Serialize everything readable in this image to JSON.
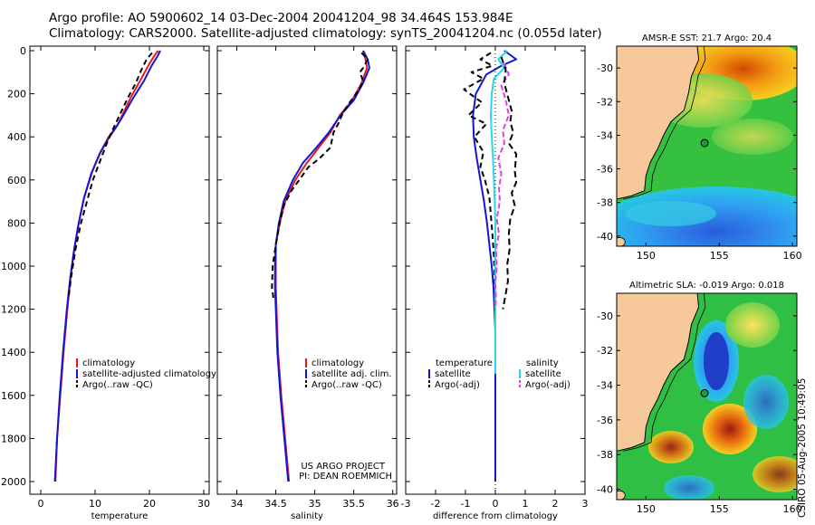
{
  "header": {
    "line1": "Argo profile: AO 5900602_14 03-Dec-2004 20041204_98 34.464S 153.984E",
    "line2": "Climatology: CARS2000. Satellite-adjusted climatology: synTS_20041204.nc (0.055d later)"
  },
  "stamp": "CSIRO 05-Aug-2005 10:49:05",
  "colors": {
    "climatology": "#e41a1c",
    "satellite": "#1515d0",
    "argo": "#000000",
    "satellite_salinity": "#28d8e8",
    "argo_salinity": "#e040e0",
    "land": "#f6c89a"
  },
  "chart_data": [
    {
      "type": "line",
      "name": "temperature-profile",
      "xlabel": "temperature",
      "xlim": [
        -2,
        31
      ],
      "ylim": [
        0,
        2050
      ],
      "y_reversed": true,
      "xticks": [
        0,
        10,
        20,
        30
      ],
      "yticks": [
        0,
        200,
        400,
        600,
        800,
        1000,
        1200,
        1400,
        1600,
        1800,
        2000
      ],
      "ytick_labels": [
        "0",
        "200",
        "400",
        "600",
        "800",
        "1000",
        "1200",
        "1400",
        "1600",
        "1800",
        "2000"
      ],
      "series": [
        {
          "name": "climatology",
          "color_key": "climatology",
          "dash": "",
          "points": [
            [
              21.6,
              0
            ],
            [
              21,
              20
            ],
            [
              20,
              60
            ],
            [
              18.5,
              130
            ],
            [
              16.5,
              220
            ],
            [
              15,
              300
            ],
            [
              14,
              350
            ],
            [
              12.5,
              400
            ],
            [
              11,
              470
            ],
            [
              9.5,
              560
            ],
            [
              8,
              680
            ],
            [
              7,
              800
            ],
            [
              6.2,
              920
            ],
            [
              5.5,
              1050
            ],
            [
              4.9,
              1200
            ],
            [
              4.2,
              1400
            ],
            [
              3.6,
              1600
            ],
            [
              3,
              1800
            ],
            [
              2.7,
              2000
            ]
          ]
        },
        {
          "name": "satellite-adjusted climatology",
          "color_key": "satellite",
          "dash": "",
          "points": [
            [
              22,
              0
            ],
            [
              21.5,
              25
            ],
            [
              20.4,
              70
            ],
            [
              19,
              140
            ],
            [
              17,
              220
            ],
            [
              15.2,
              300
            ],
            [
              14,
              350
            ],
            [
              12.4,
              410
            ],
            [
              10.8,
              480
            ],
            [
              9.3,
              570
            ],
            [
              7.9,
              690
            ],
            [
              6.9,
              810
            ],
            [
              6.1,
              930
            ],
            [
              5.4,
              1060
            ],
            [
              4.8,
              1200
            ],
            [
              4.1,
              1400
            ],
            [
              3.5,
              1600
            ],
            [
              3,
              1800
            ],
            [
              2.6,
              2000
            ]
          ]
        },
        {
          "name": "Argo(..raw -QC)",
          "color_key": "argo",
          "dash": "6 4",
          "points": [
            [
              20.5,
              10
            ],
            [
              19.5,
              40
            ],
            [
              18.5,
              90
            ],
            [
              17.5,
              150
            ],
            [
              16,
              220
            ],
            [
              14.5,
              300
            ],
            [
              13,
              380
            ],
            [
              12,
              440
            ],
            [
              10.8,
              520
            ],
            [
              9.6,
              600
            ],
            [
              8.5,
              700
            ],
            [
              7.4,
              800
            ],
            [
              6.4,
              920
            ],
            [
              5.6,
              1050
            ],
            [
              5.1,
              1150
            ]
          ]
        }
      ],
      "legend": {
        "position": "bottom-right",
        "entries": [
          "climatology",
          "satellite-adjusted climatology",
          "Argo(..raw -QC)"
        ]
      }
    },
    {
      "type": "line",
      "name": "salinity-profile",
      "xlabel": "salinity",
      "xlim": [
        33.75,
        36.05
      ],
      "ylim": [
        0,
        2050
      ],
      "y_reversed": true,
      "xticks": [
        34,
        34.5,
        35,
        35.5,
        36
      ],
      "annotations": [
        "US ARGO PROJECT",
        "PI: DEAN ROEMMICH"
      ],
      "series": [
        {
          "name": "climatology",
          "color_key": "climatology",
          "dash": "",
          "points": [
            [
              35.62,
              0
            ],
            [
              35.65,
              40
            ],
            [
              35.67,
              80
            ],
            [
              35.6,
              150
            ],
            [
              35.48,
              230
            ],
            [
              35.32,
              300
            ],
            [
              35.2,
              380
            ],
            [
              35.05,
              450
            ],
            [
              34.9,
              520
            ],
            [
              34.75,
              600
            ],
            [
              34.62,
              700
            ],
            [
              34.55,
              800
            ],
            [
              34.5,
              900
            ],
            [
              34.5,
              1000
            ],
            [
              34.5,
              1100
            ],
            [
              34.51,
              1200
            ],
            [
              34.53,
              1400
            ],
            [
              34.57,
              1600
            ],
            [
              34.62,
              1800
            ],
            [
              34.67,
              2000
            ]
          ]
        },
        {
          "name": "satellite adj. clim.",
          "color_key": "satellite",
          "dash": "",
          "points": [
            [
              35.62,
              0
            ],
            [
              35.68,
              40
            ],
            [
              35.7,
              80
            ],
            [
              35.62,
              150
            ],
            [
              35.5,
              230
            ],
            [
              35.33,
              300
            ],
            [
              35.18,
              380
            ],
            [
              35.02,
              450
            ],
            [
              34.85,
              520
            ],
            [
              34.72,
              600
            ],
            [
              34.6,
              700
            ],
            [
              34.54,
              800
            ],
            [
              34.5,
              900
            ],
            [
              34.49,
              1000
            ],
            [
              34.49,
              1100
            ],
            [
              34.5,
              1200
            ],
            [
              34.52,
              1400
            ],
            [
              34.56,
              1600
            ],
            [
              34.61,
              1800
            ],
            [
              34.66,
              2000
            ]
          ]
        },
        {
          "name": "Argo(..raw -QC)",
          "color_key": "argo",
          "dash": "6 4",
          "points": [
            [
              35.6,
              10
            ],
            [
              35.68,
              40
            ],
            [
              35.62,
              80
            ],
            [
              35.58,
              100
            ],
            [
              35.62,
              140
            ],
            [
              35.57,
              180
            ],
            [
              35.45,
              240
            ],
            [
              35.36,
              290
            ],
            [
              35.3,
              340
            ],
            [
              35.24,
              380
            ],
            [
              35.2,
              450
            ],
            [
              35.06,
              500
            ],
            [
              34.92,
              540
            ],
            [
              34.8,
              600
            ],
            [
              34.7,
              650
            ],
            [
              34.6,
              720
            ],
            [
              34.55,
              800
            ],
            [
              34.5,
              900
            ],
            [
              34.46,
              1000
            ],
            [
              34.45,
              1100
            ],
            [
              34.47,
              1150
            ]
          ]
        }
      ],
      "legend": {
        "position": "bottom-right",
        "entries": [
          "climatology",
          "satellite adj. clim.",
          "Argo(..raw -QC)"
        ]
      }
    },
    {
      "type": "line",
      "name": "difference-profile",
      "xlabel": "difference from climatology",
      "xlim": [
        -3,
        3
      ],
      "ylim": [
        0,
        2050
      ],
      "y_reversed": true,
      "xticks": [
        -3,
        -2,
        -1,
        0,
        1,
        2,
        3
      ],
      "legend_left_title": "temperature",
      "legend_right_title": "salinity",
      "series": [
        {
          "name": "temperature satellite",
          "color_key": "satellite",
          "dash": "",
          "points": [
            [
              0.3,
              0
            ],
            [
              0.7,
              40
            ],
            [
              0.2,
              70
            ],
            [
              -0.3,
              110
            ],
            [
              -0.65,
              200
            ],
            [
              -0.75,
              300
            ],
            [
              -0.72,
              400
            ],
            [
              -0.62,
              500
            ],
            [
              -0.5,
              600
            ],
            [
              -0.38,
              700
            ],
            [
              -0.28,
              800
            ],
            [
              -0.2,
              900
            ],
            [
              -0.12,
              1000
            ],
            [
              -0.06,
              1100
            ],
            [
              -0.03,
              1200
            ],
            [
              0,
              1300
            ],
            [
              0,
              2000
            ]
          ]
        },
        {
          "name": "temperature Argo(-adj)",
          "color_key": "argo",
          "dash": "6 4",
          "points": [
            [
              -0.15,
              10
            ],
            [
              -0.5,
              40
            ],
            [
              -0.1,
              70
            ],
            [
              -0.8,
              100
            ],
            [
              -0.4,
              130
            ],
            [
              -1.05,
              180
            ],
            [
              -0.45,
              240
            ],
            [
              -0.9,
              300
            ],
            [
              -0.3,
              340
            ],
            [
              -0.7,
              400
            ],
            [
              -0.4,
              470
            ],
            [
              -0.5,
              540
            ],
            [
              -0.35,
              600
            ],
            [
              -0.2,
              680
            ],
            [
              -0.15,
              760
            ],
            [
              -0.1,
              850
            ],
            [
              -0.05,
              950
            ],
            [
              -0.02,
              1050
            ],
            [
              0,
              1150
            ]
          ]
        },
        {
          "name": "salinity satellite",
          "color_key": "satellite_salinity",
          "dash": "",
          "points": [
            [
              0.4,
              0
            ],
            [
              0.1,
              40
            ],
            [
              0.3,
              80
            ],
            [
              -0.05,
              130
            ],
            [
              -0.12,
              200
            ],
            [
              -0.15,
              300
            ],
            [
              -0.12,
              400
            ],
            [
              -0.08,
              500
            ],
            [
              -0.05,
              600
            ],
            [
              -0.02,
              700
            ],
            [
              0,
              800
            ],
            [
              0,
              900
            ],
            [
              0,
              1000
            ],
            [
              0,
              1100
            ],
            [
              0,
              1300
            ],
            [
              0,
              1500
            ]
          ]
        },
        {
          "name": "salinity Argo(-adj)",
          "color_key": "argo_salinity",
          "dash": "6 3",
          "points": [
            [
              0.3,
              60
            ],
            [
              0.45,
              110
            ],
            [
              0.2,
              160
            ],
            [
              0.35,
              230
            ],
            [
              0.45,
              300
            ],
            [
              0.25,
              370
            ],
            [
              0.3,
              430
            ],
            [
              0.1,
              500
            ],
            [
              0.2,
              570
            ],
            [
              0.12,
              640
            ],
            [
              0.15,
              700
            ],
            [
              0.05,
              780
            ],
            [
              0.12,
              850
            ],
            [
              0.02,
              920
            ],
            [
              0.05,
              1000
            ],
            [
              0,
              1080
            ],
            [
              0.02,
              1150
            ],
            [
              0,
              1200
            ]
          ]
        },
        {
          "name": "Argo salinity raw",
          "color_key": "argo",
          "dash": "7 4",
          "points": [
            [
              0.2,
              30
            ],
            [
              0.35,
              90
            ],
            [
              0.3,
              150
            ],
            [
              0.45,
              230
            ],
            [
              0.55,
              280
            ],
            [
              0.5,
              330
            ],
            [
              0.6,
              380
            ],
            [
              0.45,
              430
            ],
            [
              0.7,
              480
            ],
            [
              0.65,
              560
            ],
            [
              0.7,
              610
            ],
            [
              0.55,
              660
            ],
            [
              0.65,
              720
            ],
            [
              0.5,
              780
            ],
            [
              0.45,
              850
            ],
            [
              0.48,
              920
            ],
            [
              0.4,
              990
            ],
            [
              0.42,
              1070
            ],
            [
              0.32,
              1150
            ],
            [
              0.25,
              1200
            ]
          ]
        }
      ],
      "legend": {
        "position": "bottom-center",
        "entries": [
          "satellite",
          "Argo(-adj)",
          "satellite",
          "Argo(-adj)"
        ]
      }
    },
    {
      "type": "heatmap",
      "name": "sst-map",
      "title": "AMSR-E SST: 21.7  Argo: 20.4",
      "xlim": [
        148,
        160.3
      ],
      "ylim": [
        -40.6,
        -28.7
      ],
      "xticks": [
        150,
        155,
        160
      ],
      "yticks": [
        -30,
        -32,
        -34,
        -36,
        -38,
        -40
      ],
      "marker": {
        "lon": 154,
        "lat": -34.46
      }
    },
    {
      "type": "heatmap",
      "name": "sla-map",
      "title": "Altimetric SLA: -0.019  Argo: 0.018",
      "xlim": [
        148,
        160.3
      ],
      "ylim": [
        -40.6,
        -28.7
      ],
      "xticks": [
        150,
        155,
        160
      ],
      "yticks": [
        -30,
        -32,
        -34,
        -36,
        -38,
        -40
      ],
      "marker": {
        "lon": 154,
        "lat": -34.46
      }
    }
  ]
}
